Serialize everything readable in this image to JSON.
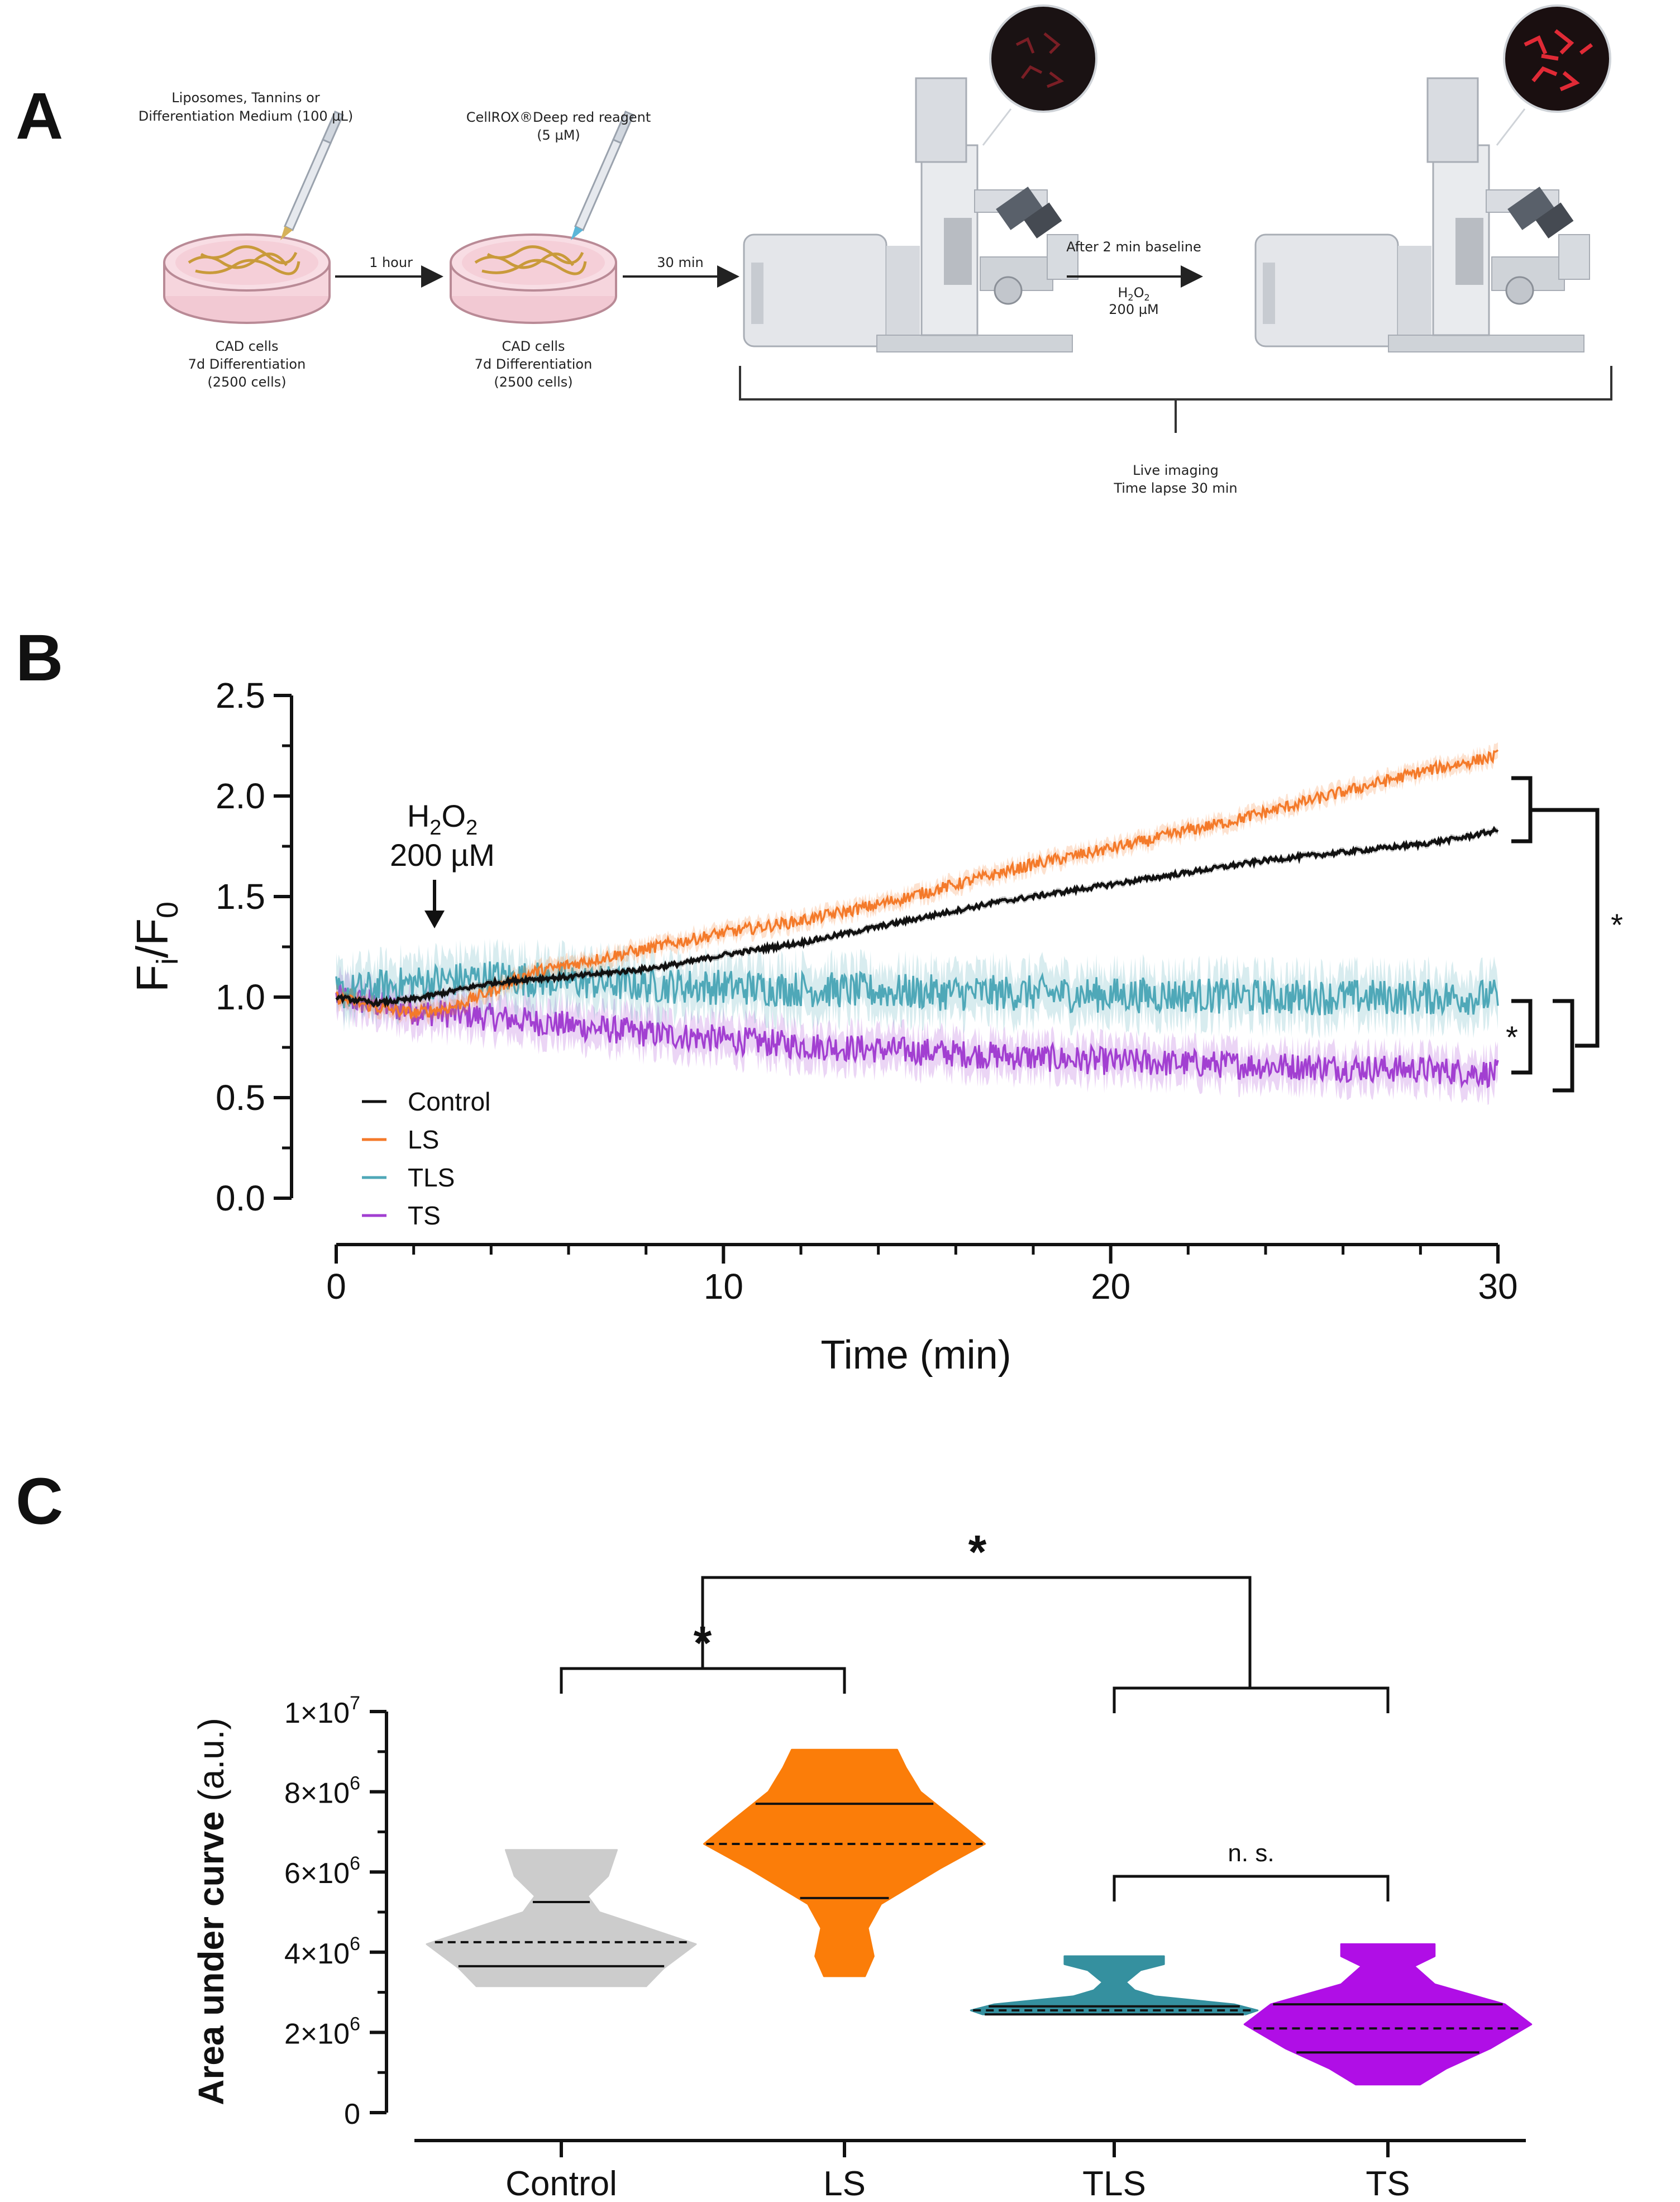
{
  "panels": {
    "a": "A",
    "b": "B",
    "c": "C"
  },
  "workflow": {
    "treatment_label_1": "Liposomes, Tannins or",
    "treatment_label_2": "Differentiation Medium (100 µL)",
    "reagent_label_1": "CellROX®Deep red reagent",
    "reagent_label_2": "(5 µM)",
    "arrow_1": "1 hour",
    "arrow_2": "30 min",
    "arrow_3": "After 2 min baseline",
    "h2o2_1": "H",
    "h2o2_sub2": "2",
    "h2o2_2": "O",
    "h2o2_conc": "200 µM",
    "cells_line1": "CAD cells",
    "cells_line2": "7d Differentiation",
    "cells_line3": "(2500 cells)",
    "imaging_line1": "Live imaging",
    "imaging_line2": "Time lapse 30 min"
  },
  "chart_data": [
    {
      "type": "line",
      "x_label": "Time (min)",
      "y_label_main": "F",
      "y_label_sub_i": "i",
      "y_label_slash": "/F",
      "y_label_sub_0": "0",
      "xlim": [
        0,
        30
      ],
      "ylim": [
        0,
        2.5
      ],
      "x_ticks": [
        "0",
        "10",
        "20",
        "30"
      ],
      "y_ticks": [
        "0.0",
        "0.5",
        "1.0",
        "1.5",
        "2.0",
        "2.5"
      ],
      "annotation": {
        "line1": "H",
        "sub1": "2",
        "mid": "O",
        "sub2": "2",
        "line2": "200 µM",
        "x": 2.5
      },
      "significance": [
        "*",
        "*"
      ],
      "series": [
        {
          "name": "Control",
          "color": "#111111",
          "x": [
            0,
            1,
            2,
            3,
            4,
            5,
            6,
            7,
            8,
            9,
            10,
            11,
            12,
            13,
            14,
            15,
            16,
            17,
            18,
            19,
            20,
            21,
            22,
            23,
            24,
            25,
            26,
            27,
            28,
            29,
            30
          ],
          "y": [
            1.0,
            0.97,
            0.99,
            1.03,
            1.07,
            1.09,
            1.1,
            1.12,
            1.14,
            1.17,
            1.21,
            1.24,
            1.27,
            1.31,
            1.35,
            1.39,
            1.43,
            1.47,
            1.5,
            1.53,
            1.56,
            1.59,
            1.62,
            1.65,
            1.68,
            1.7,
            1.72,
            1.74,
            1.76,
            1.79,
            1.83
          ],
          "noise": 0.012
        },
        {
          "name": "LS",
          "color": "#f47a2a",
          "x": [
            0,
            1,
            2,
            3,
            4,
            5,
            6,
            7,
            8,
            9,
            10,
            11,
            12,
            13,
            14,
            15,
            16,
            17,
            18,
            19,
            20,
            21,
            22,
            23,
            24,
            25,
            26,
            27,
            28,
            29,
            30
          ],
          "y": [
            1.0,
            0.95,
            0.92,
            0.95,
            1.03,
            1.12,
            1.16,
            1.2,
            1.24,
            1.28,
            1.32,
            1.35,
            1.38,
            1.42,
            1.46,
            1.51,
            1.56,
            1.61,
            1.66,
            1.7,
            1.74,
            1.78,
            1.83,
            1.87,
            1.92,
            1.97,
            2.02,
            2.07,
            2.12,
            2.16,
            2.2
          ],
          "noise": 0.03
        },
        {
          "name": "TLS",
          "color": "#4fa8b8",
          "x": [
            0,
            2,
            4,
            6,
            8,
            10,
            12,
            14,
            16,
            18,
            20,
            22,
            24,
            26,
            28,
            30
          ],
          "y": [
            1.02,
            1.07,
            1.1,
            1.08,
            1.06,
            1.05,
            1.04,
            1.03,
            1.02,
            1.02,
            1.01,
            1.01,
            1.0,
            1.0,
            1.0,
            1.0
          ],
          "noise": 0.09
        },
        {
          "name": "TS",
          "color": "#a23fd1",
          "x": [
            0,
            2,
            4,
            6,
            8,
            10,
            12,
            14,
            16,
            18,
            20,
            22,
            24,
            26,
            28,
            30
          ],
          "y": [
            1.0,
            0.93,
            0.9,
            0.86,
            0.82,
            0.79,
            0.76,
            0.74,
            0.72,
            0.7,
            0.68,
            0.67,
            0.66,
            0.65,
            0.64,
            0.62
          ],
          "noise": 0.07
        }
      ]
    },
    {
      "type": "violin",
      "y_label_bold": "Area under curve",
      "y_label_unit": " (a.u.)",
      "ylim": [
        0,
        10000000
      ],
      "y_ticks": [
        {
          "value": 0,
          "mant": "0",
          "exp": ""
        },
        {
          "value": 2000000,
          "mant": "2×10",
          "exp": "6"
        },
        {
          "value": 4000000,
          "mant": "4×10",
          "exp": "6"
        },
        {
          "value": 6000000,
          "mant": "6×10",
          "exp": "6"
        },
        {
          "value": 8000000,
          "mant": "8×10",
          "exp": "6"
        },
        {
          "value": 10000000,
          "mant": "1×10",
          "exp": "7"
        }
      ],
      "categories": [
        "Control",
        "LS",
        "TLS",
        "TS"
      ],
      "groups": [
        {
          "name": "Control",
          "fill": "#cccccc",
          "min": 3150000,
          "max": 6550000,
          "q1": 3650000,
          "median": 4250000,
          "q3": 5250000,
          "profile": [
            [
              3150000,
              0.58
            ],
            [
              3600000,
              0.7
            ],
            [
              4200000,
              0.92
            ],
            [
              4650000,
              0.55
            ],
            [
              5000000,
              0.26
            ],
            [
              5400000,
              0.18
            ],
            [
              5900000,
              0.32
            ],
            [
              6550000,
              0.38
            ]
          ]
        },
        {
          "name": "LS",
          "fill": "#fb7d09",
          "min": 3400000,
          "max": 9050000,
          "q1": 5350000,
          "median": 6700000,
          "q3": 7700000,
          "profile": [
            [
              3400000,
              0.14
            ],
            [
              3900000,
              0.2
            ],
            [
              4600000,
              0.16
            ],
            [
              5200000,
              0.25
            ],
            [
              6100000,
              0.66
            ],
            [
              6700000,
              0.96
            ],
            [
              7300000,
              0.76
            ],
            [
              8000000,
              0.52
            ],
            [
              8600000,
              0.42
            ],
            [
              9050000,
              0.36
            ]
          ]
        },
        {
          "name": "TLS",
          "fill": "#35909f",
          "min": 2450000,
          "max": 3900000,
          "q1": 2450000,
          "median": 2550000,
          "q3": 2650000,
          "profile": [
            [
              2450000,
              0.9
            ],
            [
              2550000,
              0.98
            ],
            [
              2700000,
              0.82
            ],
            [
              2900000,
              0.28
            ],
            [
              3050000,
              0.14
            ],
            [
              3250000,
              0.08
            ],
            [
              3550000,
              0.18
            ],
            [
              3700000,
              0.34
            ],
            [
              3900000,
              0.34
            ]
          ]
        },
        {
          "name": "TS",
          "fill": "#b00ee6",
          "min": 700000,
          "max": 4200000,
          "q1": 1500000,
          "median": 2100000,
          "q3": 2700000,
          "profile": [
            [
              700000,
              0.22
            ],
            [
              1100000,
              0.4
            ],
            [
              1600000,
              0.7
            ],
            [
              2200000,
              0.98
            ],
            [
              2700000,
              0.8
            ],
            [
              3200000,
              0.32
            ],
            [
              3650000,
              0.18
            ],
            [
              3900000,
              0.32
            ],
            [
              4200000,
              0.32
            ]
          ]
        }
      ],
      "comparisons": {
        "control_vs_ls": "*",
        "overall": "*",
        "tls_vs_ts": "n. s."
      }
    }
  ]
}
